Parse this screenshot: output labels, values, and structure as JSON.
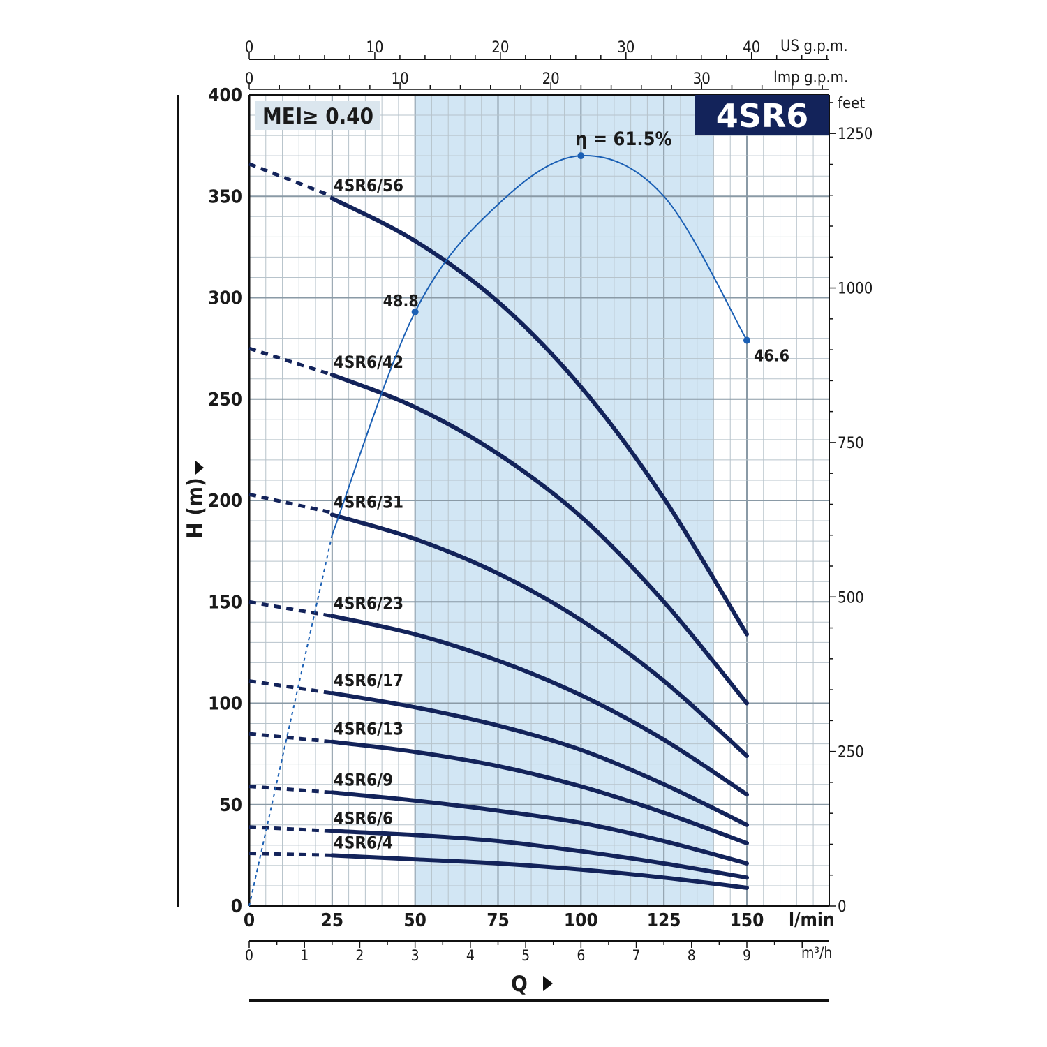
{
  "chart_data": {
    "type": "line",
    "model": "4SR6",
    "badge": "MEI≥ 0.40",
    "efficiency_label": "η = 61.5%",
    "x_unit": "l/min",
    "y_unit": "H (m)",
    "x_axis_title": "Q",
    "xlim": [
      0,
      175
    ],
    "ylim": [
      0,
      400
    ],
    "x_ticks": [
      0,
      25,
      50,
      75,
      100,
      125,
      150
    ],
    "y_ticks": [
      0,
      50,
      100,
      150,
      200,
      250,
      300,
      350,
      400
    ],
    "secondary_axes": {
      "us_gpm": {
        "label": "US g.p.m.",
        "ticks": [
          0,
          10,
          20,
          30,
          40
        ]
      },
      "imp_gpm": {
        "label": "Imp g.p.m.",
        "ticks": [
          0,
          10,
          20,
          30
        ]
      },
      "feet": {
        "label": "feet",
        "ticks": [
          0,
          250,
          500,
          750,
          1000,
          1250
        ]
      },
      "m3h": {
        "label": "m³/h",
        "ticks": [
          0,
          1,
          2,
          3,
          4,
          5,
          6,
          7,
          8,
          9
        ]
      }
    },
    "recommended_range": [
      50,
      140
    ],
    "series": [
      {
        "name": "4SR6/56",
        "shutoff": 366,
        "dash_end": 350,
        "points": [
          [
            25,
            349
          ],
          [
            50,
            328
          ],
          [
            75,
            298
          ],
          [
            100,
            256
          ],
          [
            125,
            201
          ],
          [
            150,
            134
          ]
        ]
      },
      {
        "name": "4SR6/42",
        "shutoff": 275,
        "dash_end": 262,
        "points": [
          [
            25,
            262
          ],
          [
            50,
            246
          ],
          [
            75,
            223
          ],
          [
            100,
            192
          ],
          [
            125,
            150
          ],
          [
            150,
            100
          ]
        ]
      },
      {
        "name": "4SR6/31",
        "shutoff": 203,
        "dash_end": 194,
        "points": [
          [
            25,
            193
          ],
          [
            50,
            181
          ],
          [
            75,
            164
          ],
          [
            100,
            141
          ],
          [
            125,
            111
          ],
          [
            150,
            74
          ]
        ]
      },
      {
        "name": "4SR6/23",
        "shutoff": 150,
        "dash_end": 143,
        "points": [
          [
            25,
            143
          ],
          [
            50,
            134
          ],
          [
            75,
            121
          ],
          [
            100,
            104
          ],
          [
            125,
            82
          ],
          [
            150,
            55
          ]
        ]
      },
      {
        "name": "4SR6/17",
        "shutoff": 111,
        "dash_end": 105,
        "points": [
          [
            25,
            105
          ],
          [
            50,
            98
          ],
          [
            75,
            89
          ],
          [
            100,
            77
          ],
          [
            125,
            60
          ],
          [
            150,
            40
          ]
        ]
      },
      {
        "name": "4SR6/13",
        "shutoff": 85,
        "dash_end": 81,
        "points": [
          [
            25,
            81
          ],
          [
            50,
            76
          ],
          [
            75,
            69
          ],
          [
            100,
            59
          ],
          [
            125,
            46
          ],
          [
            150,
            31
          ]
        ]
      },
      {
        "name": "4SR6/9",
        "shutoff": 59,
        "dash_end": 56,
        "points": [
          [
            25,
            56
          ],
          [
            50,
            52
          ],
          [
            75,
            47
          ],
          [
            100,
            41
          ],
          [
            125,
            32
          ],
          [
            150,
            21
          ]
        ]
      },
      {
        "name": "4SR6/6",
        "shutoff": 39,
        "dash_end": 37,
        "points": [
          [
            25,
            37
          ],
          [
            50,
            35
          ],
          [
            75,
            32
          ],
          [
            100,
            27
          ],
          [
            125,
            21
          ],
          [
            150,
            14
          ]
        ]
      },
      {
        "name": "4SR6/4",
        "shutoff": 26,
        "dash_end": 25,
        "points": [
          [
            25,
            25
          ],
          [
            50,
            23
          ],
          [
            75,
            21
          ],
          [
            100,
            18
          ],
          [
            125,
            14
          ],
          [
            150,
            9
          ]
        ]
      }
    ],
    "efficiency_curve": {
      "points": [
        [
          25,
          183
        ],
        [
          50,
          293
        ],
        [
          75,
          346
        ],
        [
          100,
          370
        ],
        [
          125,
          350
        ],
        [
          150,
          279
        ]
      ],
      "labels": [
        {
          "x": 50,
          "y": 293,
          "text": "48.8"
        },
        {
          "x": 150,
          "y": 279,
          "text": "46.6"
        }
      ]
    }
  }
}
